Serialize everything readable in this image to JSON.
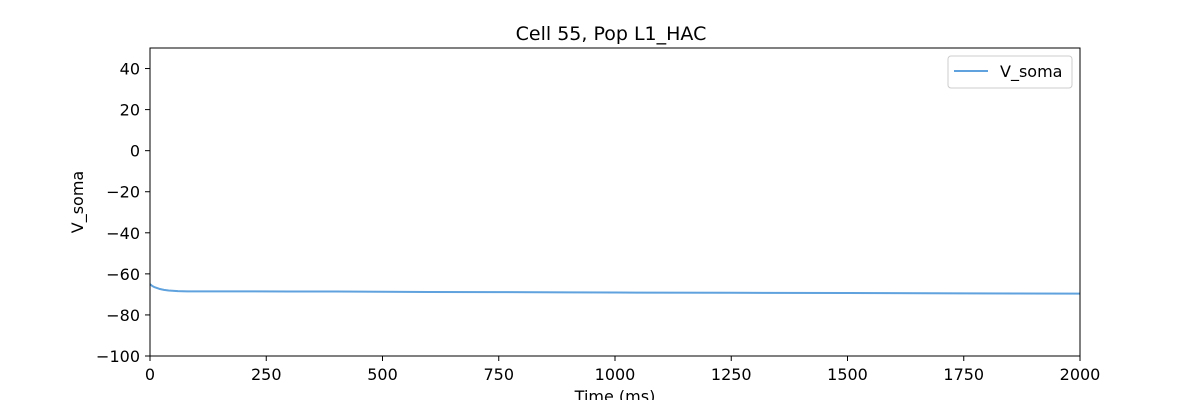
{
  "chart_data": {
    "type": "line",
    "title": "Cell 55, Pop L1_HAC",
    "xlabel": "Time (ms)",
    "ylabel": "V_soma",
    "xlim": [
      0,
      2000
    ],
    "ylim": [
      -100,
      50
    ],
    "xticks": [
      0,
      250,
      500,
      750,
      1000,
      1250,
      1500,
      1750,
      2000
    ],
    "yticks": [
      -100,
      -80,
      -60,
      -40,
      -20,
      0,
      20,
      40
    ],
    "grid": false,
    "legend_position": "top-right",
    "series": [
      {
        "name": "V_soma",
        "color": "#5fa2dd",
        "x": [
          0,
          5,
          10,
          20,
          30,
          40,
          60,
          80,
          100,
          150,
          200,
          300,
          400,
          500,
          600,
          750,
          900,
          1000,
          1250,
          1500,
          1750,
          2000
        ],
        "y": [
          -65.0,
          -65.9,
          -66.5,
          -67.3,
          -67.8,
          -68.1,
          -68.4,
          -68.5,
          -68.5,
          -68.5,
          -68.5,
          -68.6,
          -68.6,
          -68.7,
          -68.8,
          -68.9,
          -69.0,
          -69.1,
          -69.2,
          -69.3,
          -69.5,
          -69.6
        ]
      }
    ]
  }
}
